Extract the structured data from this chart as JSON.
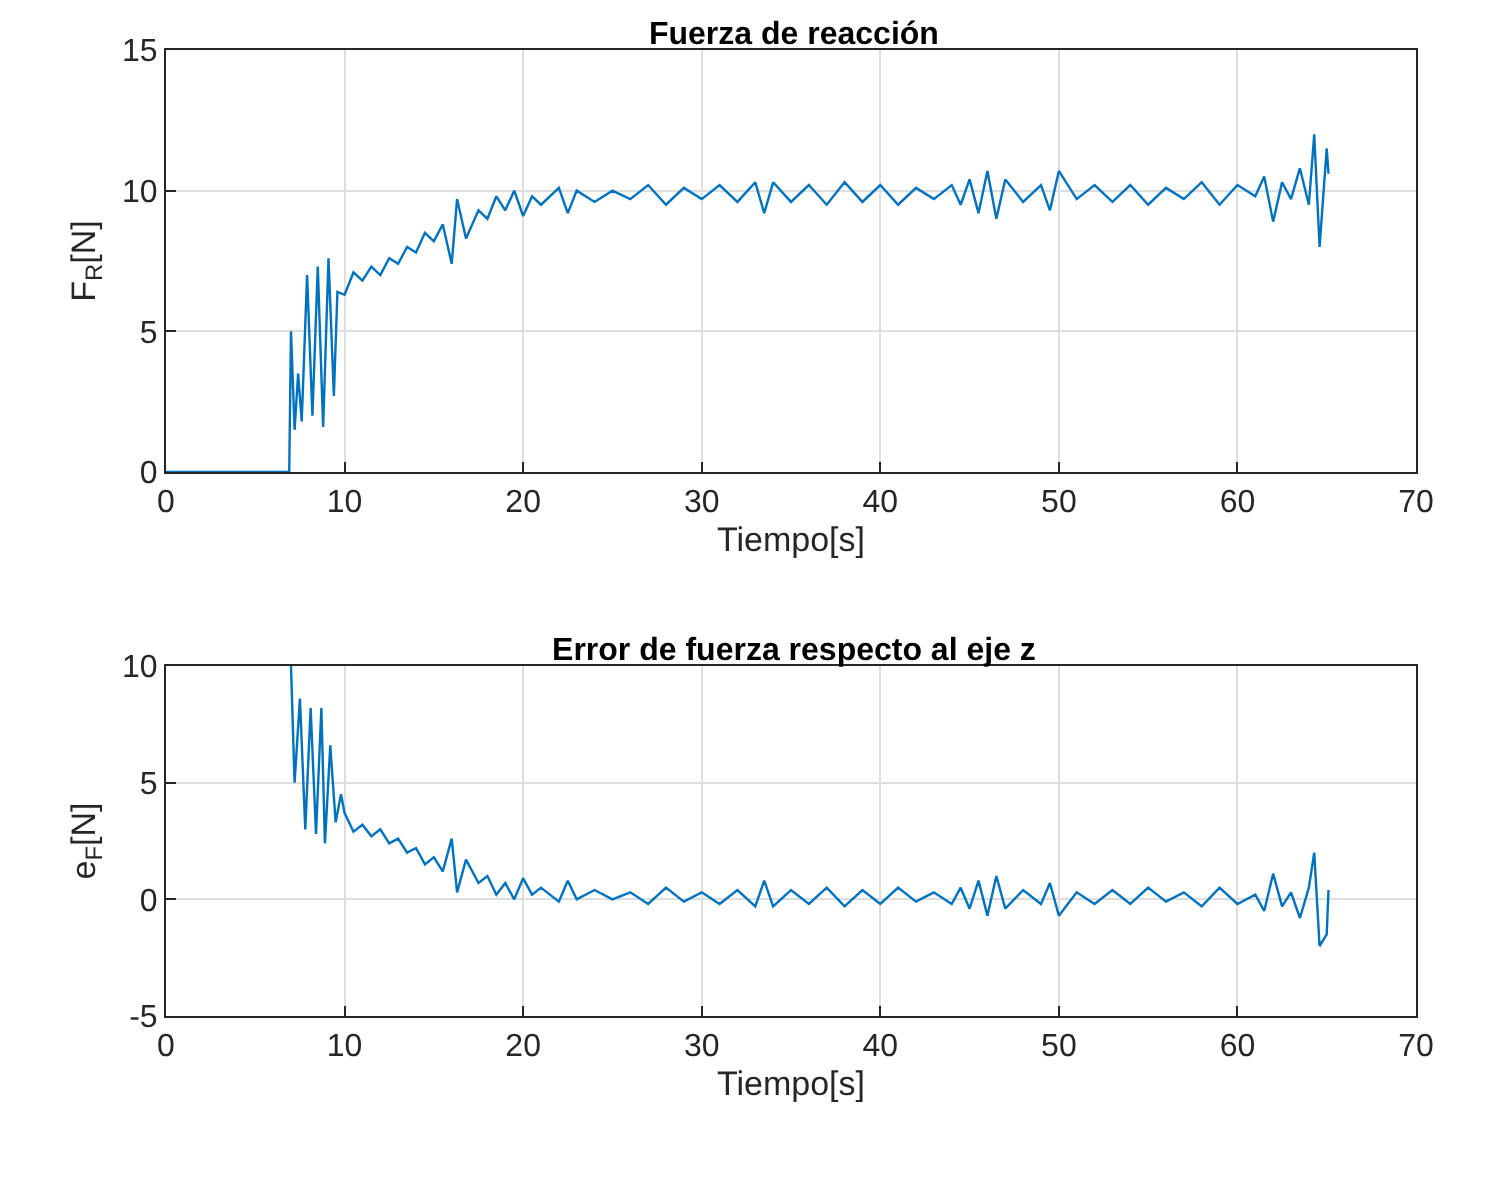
{
  "chart_data": [
    {
      "type": "line",
      "title": "Fuerza de reacción",
      "xlabel": "Tiempo[s]",
      "ylabel": "F$_{R}$[N]",
      "xlim": [
        0,
        70
      ],
      "xticks": [
        0,
        10,
        20,
        30,
        40,
        50,
        60,
        70
      ],
      "ylim": [
        0,
        15
      ],
      "yticks": [
        0,
        5,
        10,
        15
      ],
      "grid": true,
      "x": [
        0,
        6.9,
        7.0,
        7.2,
        7.4,
        7.6,
        7.9,
        8.2,
        8.5,
        8.8,
        9.1,
        9.4,
        9.6,
        10,
        10.5,
        11,
        11.5,
        12,
        12.5,
        13,
        13.5,
        14,
        14.5,
        15,
        15.5,
        16,
        16.3,
        16.8,
        17.5,
        18,
        18.5,
        19,
        19.5,
        20,
        20.5,
        21,
        22,
        22.5,
        23,
        24,
        25,
        26,
        27,
        28,
        29,
        30,
        31,
        32,
        33,
        33.5,
        34,
        35,
        36,
        37,
        38,
        39,
        40,
        41,
        42,
        43,
        44,
        44.5,
        45,
        45.5,
        46,
        46.5,
        47,
        48,
        49,
        49.5,
        50,
        51,
        52,
        53,
        54,
        55,
        56,
        57,
        58,
        59,
        60,
        61,
        61.5,
        62,
        62.5,
        63,
        63.5,
        64,
        64.3,
        64.6,
        65,
        65.1
      ],
      "series": [
        {
          "color": "#0072bd",
          "values": [
            0,
            0,
            5.0,
            1.5,
            3.5,
            1.8,
            7.0,
            2.0,
            7.3,
            1.6,
            7.6,
            2.7,
            6.4,
            6.3,
            7.1,
            6.8,
            7.3,
            7.0,
            7.6,
            7.4,
            8.0,
            7.8,
            8.5,
            8.2,
            8.8,
            7.4,
            9.7,
            8.3,
            9.3,
            9.0,
            9.8,
            9.3,
            10.0,
            9.1,
            9.8,
            9.5,
            10.1,
            9.2,
            10.0,
            9.6,
            10.0,
            9.7,
            10.2,
            9.5,
            10.1,
            9.7,
            10.2,
            9.6,
            10.3,
            9.2,
            10.3,
            9.6,
            10.2,
            9.5,
            10.3,
            9.6,
            10.2,
            9.5,
            10.1,
            9.7,
            10.2,
            9.5,
            10.4,
            9.2,
            10.7,
            9.0,
            10.4,
            9.6,
            10.2,
            9.3,
            10.7,
            9.7,
            10.2,
            9.6,
            10.2,
            9.5,
            10.1,
            9.7,
            10.3,
            9.5,
            10.2,
            9.8,
            10.5,
            8.9,
            10.3,
            9.7,
            10.8,
            9.5,
            12.0,
            8.0,
            11.5,
            10.6
          ]
        }
      ]
    },
    {
      "type": "line",
      "title": "Error de fuerza respecto al eje z",
      "xlabel": "Tiempo[s]",
      "ylabel": "e$_{F}$[N]",
      "xlim": [
        0,
        70
      ],
      "xticks": [
        0,
        10,
        20,
        30,
        40,
        50,
        60,
        70
      ],
      "ylim": [
        -5,
        10
      ],
      "yticks": [
        -5,
        0,
        5,
        10
      ],
      "grid": true,
      "x": [
        7.0,
        7.2,
        7.5,
        7.8,
        8.1,
        8.4,
        8.7,
        8.9,
        9.2,
        9.5,
        9.8,
        10,
        10.5,
        11,
        11.5,
        12,
        12.5,
        13,
        13.5,
        14,
        14.5,
        15,
        15.5,
        16,
        16.3,
        16.8,
        17.5,
        18,
        18.5,
        19,
        19.5,
        20,
        20.5,
        21,
        22,
        22.5,
        23,
        24,
        25,
        26,
        27,
        28,
        29,
        30,
        31,
        32,
        33,
        33.5,
        34,
        35,
        36,
        37,
        38,
        39,
        40,
        41,
        42,
        43,
        44,
        44.5,
        45,
        45.5,
        46,
        46.5,
        47,
        48,
        49,
        49.5,
        50,
        51,
        52,
        53,
        54,
        55,
        56,
        57,
        58,
        59,
        60,
        61,
        61.5,
        62,
        62.5,
        63,
        63.5,
        64,
        64.3,
        64.6,
        65,
        65.1
      ],
      "series": [
        {
          "color": "#0072bd",
          "values": [
            10,
            5.0,
            8.6,
            3.0,
            8.2,
            2.8,
            8.2,
            2.4,
            6.6,
            3.3,
            4.5,
            3.7,
            2.9,
            3.2,
            2.7,
            3.0,
            2.4,
            2.6,
            2.0,
            2.2,
            1.5,
            1.8,
            1.2,
            2.6,
            0.3,
            1.7,
            0.7,
            1.0,
            0.2,
            0.7,
            0,
            0.9,
            0.2,
            0.5,
            -0.1,
            0.8,
            0,
            0.4,
            0,
            0.3,
            -0.2,
            0.5,
            -0.1,
            0.3,
            -0.2,
            0.4,
            -0.3,
            0.8,
            -0.3,
            0.4,
            -0.2,
            0.5,
            -0.3,
            0.4,
            -0.2,
            0.5,
            -0.1,
            0.3,
            -0.2,
            0.5,
            -0.4,
            0.8,
            -0.7,
            1.0,
            -0.4,
            0.4,
            -0.2,
            0.7,
            -0.7,
            0.3,
            -0.2,
            0.4,
            -0.2,
            0.5,
            -0.1,
            0.3,
            -0.3,
            0.5,
            -0.2,
            0.2,
            -0.5,
            1.1,
            -0.3,
            0.3,
            -0.8,
            0.5,
            2.0,
            -2.0,
            -1.5,
            0.4
          ]
        }
      ]
    }
  ]
}
